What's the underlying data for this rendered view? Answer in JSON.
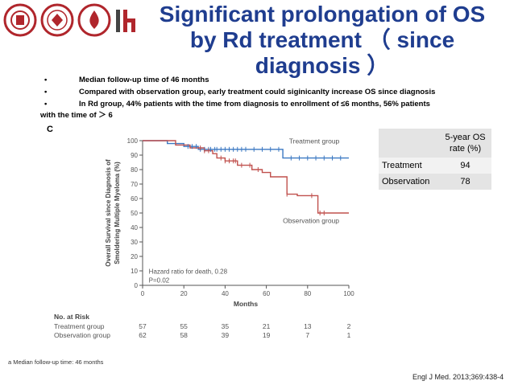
{
  "title_line1": "Significant prolongation of OS",
  "title_line2": "by Rd treatment （ since",
  "title_line3": "diagnosis ）",
  "bullets": [
    "Median follow-up time of 46 months",
    "Compared with observation group, early treatment could siginicanlty increase OS since diagnosis",
    "In Rd group, 44% patients with the time from diagnosis to enrollment of ≤6 months, 56% patients"
  ],
  "bullet_continuation": "with the time of ＞ 6",
  "bullet_marker": "•",
  "chart_data": {
    "type": "line",
    "panel_label": "C",
    "ylabel_line1": "Overall Survival since Diagnosis of",
    "ylabel_line2": "Smoldering Multiple Myeloma (%)",
    "xlabel": "Months",
    "xlim": [
      0,
      100
    ],
    "ylim": [
      0,
      100
    ],
    "xticks": [
      0,
      20,
      40,
      60,
      80,
      100
    ],
    "yticks": [
      0,
      10,
      20,
      30,
      40,
      50,
      60,
      70,
      80,
      90,
      100
    ],
    "hazard_text": "Hazard ratio for death, 0.28",
    "p_text": "P=0.02",
    "series": [
      {
        "name": "Treatment group",
        "color": "#3b78c2",
        "x": [
          0,
          8,
          12,
          12,
          20,
          20,
          27,
          27,
          68,
          68,
          100
        ],
        "y": [
          100,
          100,
          100,
          98,
          98,
          96,
          96,
          94,
          94,
          88,
          88
        ],
        "censor_x": [
          22,
          24,
          26,
          28,
          30,
          32,
          33,
          35,
          36,
          38,
          40,
          42,
          44,
          46,
          48,
          50,
          54,
          58,
          62,
          66,
          72,
          76,
          80,
          84,
          88,
          92,
          96
        ]
      },
      {
        "name": "Observation group",
        "color": "#c0504d",
        "x": [
          0,
          16,
          16,
          23,
          23,
          30,
          30,
          34,
          34,
          36,
          36,
          40,
          40,
          46,
          46,
          53,
          53,
          58,
          58,
          62,
          62,
          70,
          70,
          75,
          75,
          85,
          85,
          100
        ],
        "y": [
          100,
          100,
          97,
          97,
          95,
          95,
          93,
          93,
          91,
          91,
          88,
          88,
          86,
          86,
          83,
          83,
          80,
          80,
          78,
          78,
          75,
          75,
          63,
          63,
          62,
          62,
          50,
          50
        ]
      }
    ],
    "censor_obs_x": [
      28,
      30,
      32,
      38,
      40,
      42,
      44,
      45,
      48,
      52,
      56,
      70,
      82,
      86,
      88
    ],
    "risk_title": "No. at Risk",
    "risk_rows": [
      {
        "label": "Treatment group",
        "values": [
          "57",
          "55",
          "35",
          "21",
          "13",
          "2"
        ]
      },
      {
        "label": "Observation group",
        "values": [
          "62",
          "58",
          "39",
          "19",
          "7",
          "1"
        ]
      }
    ]
  },
  "table": {
    "header_line1": "5-year OS",
    "header_line2": "rate (%)",
    "rows": [
      {
        "label": "Treatment",
        "value": "94"
      },
      {
        "label": "Observation",
        "value": "78"
      }
    ],
    "header_bg": "#e4e4e4",
    "row_bg": "#f2f2f2"
  },
  "footnote": "a Median follow-up time: 46 months",
  "citation": "Engl J Med. 2013;369:438-4",
  "colors": {
    "title": "#1f3d8f",
    "logo_red": "#b0262c"
  }
}
